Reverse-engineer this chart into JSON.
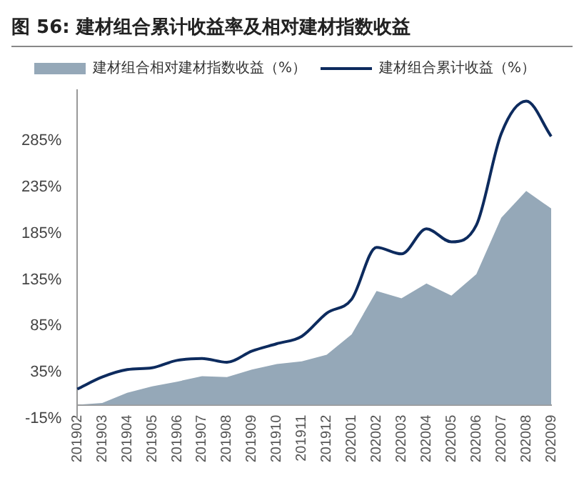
{
  "chart_data": {
    "type": "area",
    "title": "图 56: 建材组合累计收益率及相对建材指数收益",
    "categories": [
      "201902",
      "201903",
      "201904",
      "201905",
      "201906",
      "201907",
      "201908",
      "201909",
      "201910",
      "201911",
      "201912",
      "202001",
      "202002",
      "202003",
      "202004",
      "202005",
      "202006",
      "202007",
      "202008",
      "202009"
    ],
    "series": [
      {
        "name": "建材组合相对建材指数收益（%）",
        "type": "area",
        "color": "#95a8b8",
        "values": [
          0,
          2,
          13,
          20,
          25,
          31,
          30,
          38,
          44,
          47,
          54,
          76,
          123,
          115,
          131,
          118,
          141,
          202,
          231,
          212
        ]
      },
      {
        "name": "建材组合累计收益（%）",
        "type": "line",
        "color": "#0d2b5e",
        "values": [
          17,
          30,
          38,
          40,
          48,
          50,
          46,
          58,
          66,
          74,
          99,
          114,
          170,
          163,
          190,
          176,
          194,
          293,
          328,
          290
        ]
      }
    ],
    "ylim": [
      -15,
      340
    ],
    "yticks": [
      {
        "value": -15,
        "label": "-15%"
      },
      {
        "value": 35,
        "label": "35%"
      },
      {
        "value": 85,
        "label": "85%"
      },
      {
        "value": 135,
        "label": "135%"
      },
      {
        "value": 185,
        "label": "185%"
      },
      {
        "value": 235,
        "label": "235%"
      },
      {
        "value": 285,
        "label": "285%"
      }
    ],
    "grid": false,
    "legend": "top",
    "marker": "none",
    "line_style": "solid"
  }
}
